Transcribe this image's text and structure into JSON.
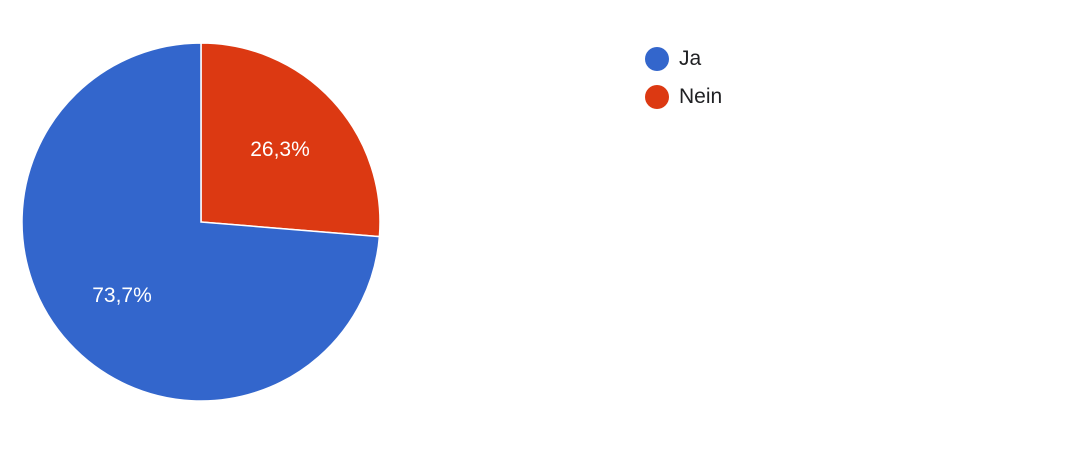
{
  "chart_data": {
    "type": "pie",
    "title": "",
    "legend_position": "right",
    "series": [
      {
        "name": "Ja",
        "value": 73.7,
        "label": "73,7%",
        "color": "#3366cc"
      },
      {
        "name": "Nein",
        "value": 26.3,
        "label": "26,3%",
        "color": "#dc3912"
      }
    ]
  }
}
